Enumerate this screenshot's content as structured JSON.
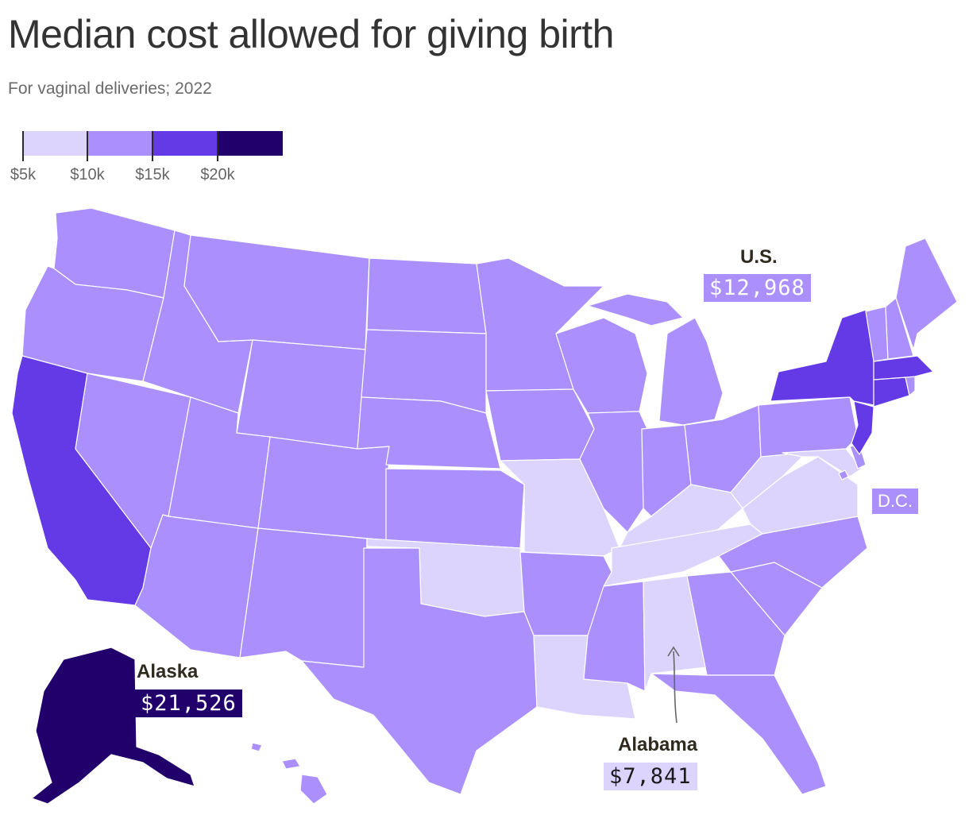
{
  "title": "Median cost allowed for giving birth",
  "subtitle": "For vaginal deliveries; 2022",
  "legend": {
    "ticks": [
      "$5k",
      "$10k",
      "$15k",
      "$20k"
    ],
    "bins": [
      {
        "from": 5000,
        "to": 10000,
        "color": "#ddd4fe"
      },
      {
        "from": 10000,
        "to": 15000,
        "color": "#ab90fd"
      },
      {
        "from": 15000,
        "to": 20000,
        "color": "#6439e6"
      },
      {
        "from": 20000,
        "to": 25000,
        "color": "#21006b"
      }
    ]
  },
  "map_data": {
    "type": "choropleth",
    "unit": "USD",
    "colors": {
      "under_10k": "#ddd4fe",
      "10k_15k": "#ab90fd",
      "15k_20k": "#6439e6",
      "over_20k": "#21006b",
      "border": "#ffffff",
      "arrow": "#666666"
    },
    "state_bins": {
      "WA": "10k_15k",
      "OR": "10k_15k",
      "CA": "15k_20k",
      "NV": "10k_15k",
      "ID": "10k_15k",
      "MT": "10k_15k",
      "WY": "10k_15k",
      "UT": "10k_15k",
      "AZ": "10k_15k",
      "CO": "10k_15k",
      "NM": "10k_15k",
      "ND": "10k_15k",
      "SD": "10k_15k",
      "NE": "10k_15k",
      "KS": "10k_15k",
      "OK": "under_10k",
      "TX": "10k_15k",
      "MN": "10k_15k",
      "IA": "10k_15k",
      "MO": "under_10k",
      "AR": "10k_15k",
      "LA": "under_10k",
      "WI": "10k_15k",
      "IL": "10k_15k",
      "MI": "10k_15k",
      "IN": "10k_15k",
      "OH": "10k_15k",
      "KY": "under_10k",
      "TN": "under_10k",
      "MS": "10k_15k",
      "AL": "under_10k",
      "GA": "10k_15k",
      "FL": "10k_15k",
      "SC": "10k_15k",
      "NC": "10k_15k",
      "VA": "under_10k",
      "WV": "under_10k",
      "PA": "10k_15k",
      "NY": "15k_20k",
      "VT": "10k_15k",
      "NH": "10k_15k",
      "ME": "10k_15k",
      "MA": "15k_20k",
      "CT": "15k_20k",
      "RI": "10k_15k",
      "NJ": "15k_20k",
      "DE": "10k_15k",
      "MD": "under_10k",
      "DC": "10k_15k",
      "AK": "over_20k",
      "HI": "10k_15k"
    }
  },
  "annotations": {
    "us": {
      "name": "U.S.",
      "value": "$12,968",
      "bin": "10k_15k"
    },
    "dc": {
      "name": "D.C.",
      "bin": "10k_15k"
    },
    "alaska": {
      "name": "Alaska",
      "value": "$21,526",
      "bin": "over_20k"
    },
    "alabama": {
      "name": "Alabama",
      "value": "$7,841",
      "bin": "under_10k"
    }
  }
}
